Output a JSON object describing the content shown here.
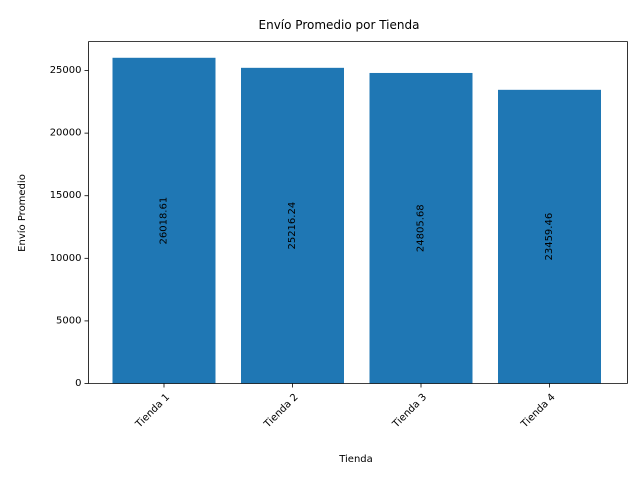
{
  "chart_data": {
    "type": "bar",
    "title": "Envío Promedio por Tienda",
    "xlabel": "Tienda",
    "ylabel": "Envío Promedio",
    "categories": [
      "Tienda 1",
      "Tienda 2",
      "Tienda 3",
      "Tienda 4"
    ],
    "values": [
      26018.61,
      25216.24,
      24805.68,
      23459.46
    ],
    "value_labels": [
      "26018.61",
      "25216.24",
      "24805.68",
      "23459.46"
    ],
    "ylim": [
      0,
      27319.54
    ],
    "yticks": [
      0,
      5000,
      10000,
      15000,
      20000,
      25000
    ],
    "ytick_labels": [
      "0",
      "5000",
      "10000",
      "15000",
      "20000",
      "25000"
    ],
    "bar_color": "#1f77b4",
    "grid": false,
    "legend": "none",
    "xtick_rotation": 45,
    "value_label_rotation": 90
  }
}
